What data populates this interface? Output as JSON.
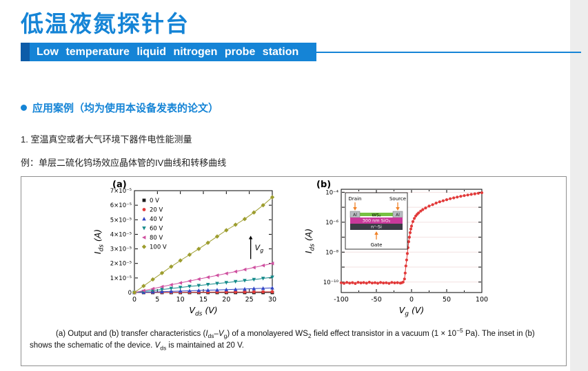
{
  "header": {
    "title": "低温液氮探针台",
    "subtitle": "Low temperature liquid nitrogen probe station"
  },
  "section": {
    "heading": "应用案例（均为使用本设备发表的论文）",
    "item1": "1. 室温真空或者大气环境下器件电性能测量",
    "example": "例：单层二硫化钨场效应晶体管的IV曲线和转移曲线"
  },
  "figure": {
    "caption": [
      {
        "t": "(a) Output and (b) transfer characteristics ("
      },
      {
        "t": "I",
        "i": true
      },
      {
        "t": "ds",
        "sub": true
      },
      {
        "t": "–"
      },
      {
        "t": "V",
        "i": true
      },
      {
        "t": "g",
        "sub": true
      },
      {
        "t": ") of a monolayered WS"
      },
      {
        "t": "2",
        "sub": true
      },
      {
        "t": " field effect transistor in a vacuum (1 × 10"
      },
      {
        "t": "−5",
        "sup": true
      },
      {
        "t": " Pa). The inset in (b) shows the schematic of the device. "
      },
      {
        "t": "V",
        "i": true
      },
      {
        "t": "ds",
        "sub": true
      },
      {
        "t": " is maintained at 20 V."
      }
    ]
  },
  "chart_data": [
    {
      "type": "line",
      "panel": "(a)",
      "title": "Output characteristics of monolayer WS2 FET",
      "xlabel_parts": [
        {
          "t": "V"
        },
        {
          "t": "ds",
          "sub": true
        },
        {
          "t": " (V)"
        }
      ],
      "ylabel_parts": [
        {
          "t": "I"
        },
        {
          "t": "ds",
          "sub": true
        },
        {
          "t": " (A)"
        }
      ],
      "xlim": [
        0,
        30
      ],
      "xticks": [
        0,
        5,
        10,
        15,
        20,
        25,
        30
      ],
      "ylim": [
        0,
        7
      ],
      "y_unit": "1e-5 A",
      "yticklabels": [
        "0",
        "1×10⁻⁵",
        "2×10⁻⁵",
        "3×10⁻⁵",
        "4×10⁻⁵",
        "5×10⁻⁵",
        "6×10⁻⁵",
        "7×10⁻⁵"
      ],
      "annotation_parts": [
        {
          "t": "V"
        },
        {
          "t": "g",
          "sub": true
        }
      ],
      "x": [
        0,
        2,
        4,
        6,
        8,
        10,
        12,
        14,
        16,
        18,
        20,
        22,
        24,
        26,
        28,
        30
      ],
      "series": [
        {
          "name": "0 V",
          "color": "#1a1a1a",
          "marker": "square",
          "values": [
            0,
            0,
            0,
            0,
            0,
            0,
            0,
            0,
            0,
            0,
            0,
            0,
            0,
            0,
            0,
            0
          ]
        },
        {
          "name": "20 V",
          "color": "#e23a3a",
          "marker": "circle",
          "values": [
            0,
            0.005,
            0.01,
            0.012,
            0.016,
            0.02,
            0.022,
            0.026,
            0.03,
            0.032,
            0.035,
            0.037,
            0.04,
            0.042,
            0.046,
            0.05
          ]
        },
        {
          "name": "40 V",
          "color": "#3144c4",
          "marker": "triangle-up",
          "values": [
            0,
            0.02,
            0.04,
            0.06,
            0.08,
            0.1,
            0.12,
            0.14,
            0.16,
            0.18,
            0.2,
            0.22,
            0.24,
            0.27,
            0.29,
            0.32
          ]
        },
        {
          "name": "60 V",
          "color": "#148a8a",
          "marker": "triangle-down",
          "values": [
            0,
            0.07,
            0.14,
            0.21,
            0.28,
            0.35,
            0.42,
            0.48,
            0.55,
            0.62,
            0.68,
            0.75,
            0.82,
            0.89,
            0.97,
            1.05
          ]
        },
        {
          "name": "80 V",
          "color": "#cf4f9f",
          "marker": "triangle-left",
          "values": [
            0,
            0.13,
            0.26,
            0.4,
            0.53,
            0.66,
            0.79,
            0.92,
            1.05,
            1.18,
            1.31,
            1.44,
            1.58,
            1.72,
            1.86,
            2.0
          ]
        },
        {
          "name": "100 V",
          "color": "#9d9d2e",
          "marker": "diamond",
          "values": [
            0,
            0.45,
            0.9,
            1.34,
            1.78,
            2.2,
            2.6,
            3.0,
            3.42,
            3.85,
            4.28,
            4.66,
            5.05,
            5.5,
            6.0,
            6.55
          ]
        }
      ]
    },
    {
      "type": "scatter",
      "panel": "(b)",
      "title": "Transfer characteristics of monolayer WS2 FET",
      "xlabel_parts": [
        {
          "t": "V"
        },
        {
          "t": "g",
          "sub": true
        },
        {
          "t": " (V)"
        }
      ],
      "ylabel_parts": [
        {
          "t": "I"
        },
        {
          "t": "ds",
          "sub": true
        },
        {
          "t": " (A)"
        }
      ],
      "xlim": [
        -100,
        100
      ],
      "xticks": [
        -100,
        -50,
        0,
        50,
        100
      ],
      "yscale": "log",
      "ylog_range": [
        -10.7,
        -3.8
      ],
      "ytick_exps": [
        -4,
        -6,
        -8,
        -10
      ],
      "yticklabels": [
        "10⁻⁴",
        "10⁻⁶",
        "10⁻⁸",
        "10⁻¹⁰"
      ],
      "color": "#e23a3a",
      "points": [
        [
          -100,
          9e-11
        ],
        [
          -96,
          8.2e-11
        ],
        [
          -92,
          9.5e-11
        ],
        [
          -88,
          8.5e-11
        ],
        [
          -84,
          9.2e-11
        ],
        [
          -80,
          8e-11
        ],
        [
          -76,
          9.6e-11
        ],
        [
          -72,
          8.8e-11
        ],
        [
          -68,
          9.3e-11
        ],
        [
          -64,
          8.4e-11
        ],
        [
          -60,
          9.8e-11
        ],
        [
          -56,
          8.6e-11
        ],
        [
          -52,
          9.1e-11
        ],
        [
          -48,
          8.3e-11
        ],
        [
          -44,
          9.4e-11
        ],
        [
          -40,
          8.7e-11
        ],
        [
          -36,
          9e-11
        ],
        [
          -32,
          8.2e-11
        ],
        [
          -28,
          9.5e-11
        ],
        [
          -24,
          8.8e-11
        ],
        [
          -20,
          9.2e-11
        ],
        [
          -16,
          8.5e-11
        ],
        [
          -14,
          9e-11
        ],
        [
          -12,
          1e-10
        ],
        [
          -10,
          1.6e-10
        ],
        [
          -9,
          4e-10
        ],
        [
          -8,
          1.2e-09
        ],
        [
          -7,
          3e-09
        ],
        [
          -6,
          8e-09
        ],
        [
          -5,
          2e-08
        ],
        [
          -4,
          5e-08
        ],
        [
          -3,
          1e-07
        ],
        [
          -2,
          2e-07
        ],
        [
          -1,
          3.5e-07
        ],
        [
          0,
          5.5e-07
        ],
        [
          2,
          1.1e-06
        ],
        [
          4,
          1.8e-06
        ],
        [
          6,
          2.6e-06
        ],
        [
          8,
          3.4e-06
        ],
        [
          10,
          4.2e-06
        ],
        [
          13,
          5.5e-06
        ],
        [
          16,
          7e-06
        ],
        [
          20,
          9e-06
        ],
        [
          25,
          1.2e-05
        ],
        [
          30,
          1.5e-05
        ],
        [
          35,
          1.9e-05
        ],
        [
          40,
          2.3e-05
        ],
        [
          45,
          2.7e-05
        ],
        [
          50,
          3.2e-05
        ],
        [
          55,
          3.7e-05
        ],
        [
          60,
          4.2e-05
        ],
        [
          65,
          4.8e-05
        ],
        [
          70,
          5.4e-05
        ],
        [
          75,
          6e-05
        ],
        [
          80,
          6.6e-05
        ],
        [
          85,
          7.2e-05
        ],
        [
          90,
          7.9e-05
        ],
        [
          95,
          8.6e-05
        ],
        [
          100,
          9.3e-05
        ]
      ],
      "inset": {
        "drain": "Drain",
        "source": "Source",
        "al": "Al",
        "ws2": "WS₂",
        "sio2": "300 nm SiO₂",
        "nsi": "n⁺-Si",
        "gate": "Gate",
        "colors": {
          "al": "#b9bdc2",
          "ws2": "#76c043",
          "sio2": "#c9399b",
          "nsi": "#3c3c46",
          "arrow": "#f08228"
        }
      }
    }
  ]
}
